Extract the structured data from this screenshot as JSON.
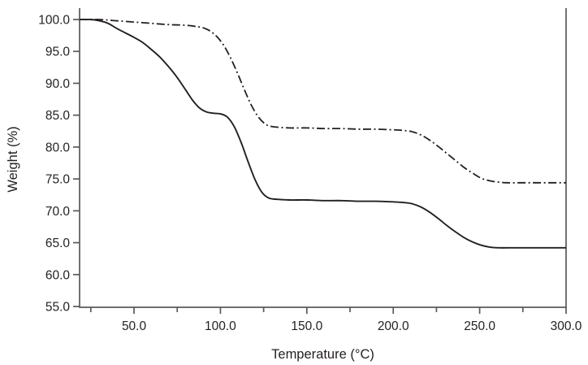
{
  "figure": {
    "background": "#ffffff",
    "axis_color": "#58595b",
    "text_color": "#231f20"
  },
  "chart_data": {
    "type": "line",
    "title": "",
    "xlabel": "Temperature (°C)",
    "ylabel": "Weight (%)",
    "xlim": [
      18.5,
      300
    ],
    "ylim": [
      55,
      100
    ],
    "grid": false,
    "legend": null,
    "frame": [
      "left",
      "right",
      "bottom"
    ],
    "x_ticks_major": [
      50,
      100,
      150,
      200,
      250,
      300
    ],
    "x_tick_labels": [
      "50.0",
      "100.0",
      "150.0",
      "200.0",
      "250.0",
      "300.0"
    ],
    "x_ticks_minor": [
      25,
      75,
      125,
      175,
      225,
      275
    ],
    "y_ticks": [
      100,
      95,
      90,
      85,
      80,
      75,
      70,
      65,
      60,
      55
    ],
    "y_tick_labels": [
      "100.0",
      "95.0",
      "90.0",
      "85.0",
      "80.0",
      "75.0",
      "70.0",
      "65.0",
      "60.0",
      "55.0"
    ],
    "series": [
      {
        "name": "sample-1-solid",
        "line_style": "solid",
        "color": "#231f20",
        "width": 1.9,
        "dash": null,
        "points": [
          [
            18.5,
            100
          ],
          [
            25,
            100
          ],
          [
            30,
            99.8
          ],
          [
            35,
            99.4
          ],
          [
            40,
            98.6
          ],
          [
            45,
            97.9
          ],
          [
            50,
            97.2
          ],
          [
            55,
            96.4
          ],
          [
            60,
            95.3
          ],
          [
            65,
            94.1
          ],
          [
            70,
            92.6
          ],
          [
            75,
            90.9
          ],
          [
            80,
            88.9
          ],
          [
            84,
            87.3
          ],
          [
            88,
            86.1
          ],
          [
            92,
            85.5
          ],
          [
            96,
            85.3
          ],
          [
            100,
            85.2
          ],
          [
            104,
            84.7
          ],
          [
            108,
            83.2
          ],
          [
            112,
            80.7
          ],
          [
            116,
            77.7
          ],
          [
            120,
            74.9
          ],
          [
            124,
            72.9
          ],
          [
            128,
            72.0
          ],
          [
            133,
            71.8
          ],
          [
            140,
            71.7
          ],
          [
            150,
            71.7
          ],
          [
            160,
            71.6
          ],
          [
            170,
            71.6
          ],
          [
            180,
            71.5
          ],
          [
            190,
            71.5
          ],
          [
            200,
            71.4
          ],
          [
            206,
            71.3
          ],
          [
            211,
            71.1
          ],
          [
            216,
            70.6
          ],
          [
            221,
            69.8
          ],
          [
            226,
            68.8
          ],
          [
            231,
            67.7
          ],
          [
            236,
            66.7
          ],
          [
            241,
            65.8
          ],
          [
            246,
            65.1
          ],
          [
            251,
            64.6
          ],
          [
            256,
            64.3
          ],
          [
            261,
            64.2
          ],
          [
            270,
            64.2
          ],
          [
            280,
            64.2
          ],
          [
            290,
            64.2
          ],
          [
            300,
            64.2
          ]
        ]
      },
      {
        "name": "sample-2-dash-dot",
        "line_style": "dash-dot",
        "color": "#231f20",
        "width": 1.8,
        "dash": [
          10,
          3.5,
          2,
          3.5
        ],
        "points": [
          [
            18.5,
            100
          ],
          [
            30,
            100
          ],
          [
            40,
            99.8
          ],
          [
            50,
            99.6
          ],
          [
            60,
            99.4
          ],
          [
            70,
            99.2
          ],
          [
            80,
            99.1
          ],
          [
            86,
            98.9
          ],
          [
            90,
            98.7
          ],
          [
            94,
            98.2
          ],
          [
            98,
            97.3
          ],
          [
            102,
            95.9
          ],
          [
            106,
            93.9
          ],
          [
            110,
            91.5
          ],
          [
            114,
            88.9
          ],
          [
            118,
            86.5
          ],
          [
            122,
            84.7
          ],
          [
            126,
            83.6
          ],
          [
            130,
            83.2
          ],
          [
            140,
            83.0
          ],
          [
            150,
            83.0
          ],
          [
            160,
            82.9
          ],
          [
            170,
            82.9
          ],
          [
            180,
            82.8
          ],
          [
            190,
            82.8
          ],
          [
            200,
            82.7
          ],
          [
            206,
            82.6
          ],
          [
            211,
            82.4
          ],
          [
            216,
            81.9
          ],
          [
            221,
            81.1
          ],
          [
            226,
            80.1
          ],
          [
            231,
            79.0
          ],
          [
            236,
            77.9
          ],
          [
            241,
            76.8
          ],
          [
            246,
            75.9
          ],
          [
            251,
            75.1
          ],
          [
            256,
            74.7
          ],
          [
            261,
            74.5
          ],
          [
            266,
            74.4
          ],
          [
            275,
            74.4
          ],
          [
            285,
            74.4
          ],
          [
            300,
            74.4
          ]
        ]
      }
    ]
  }
}
